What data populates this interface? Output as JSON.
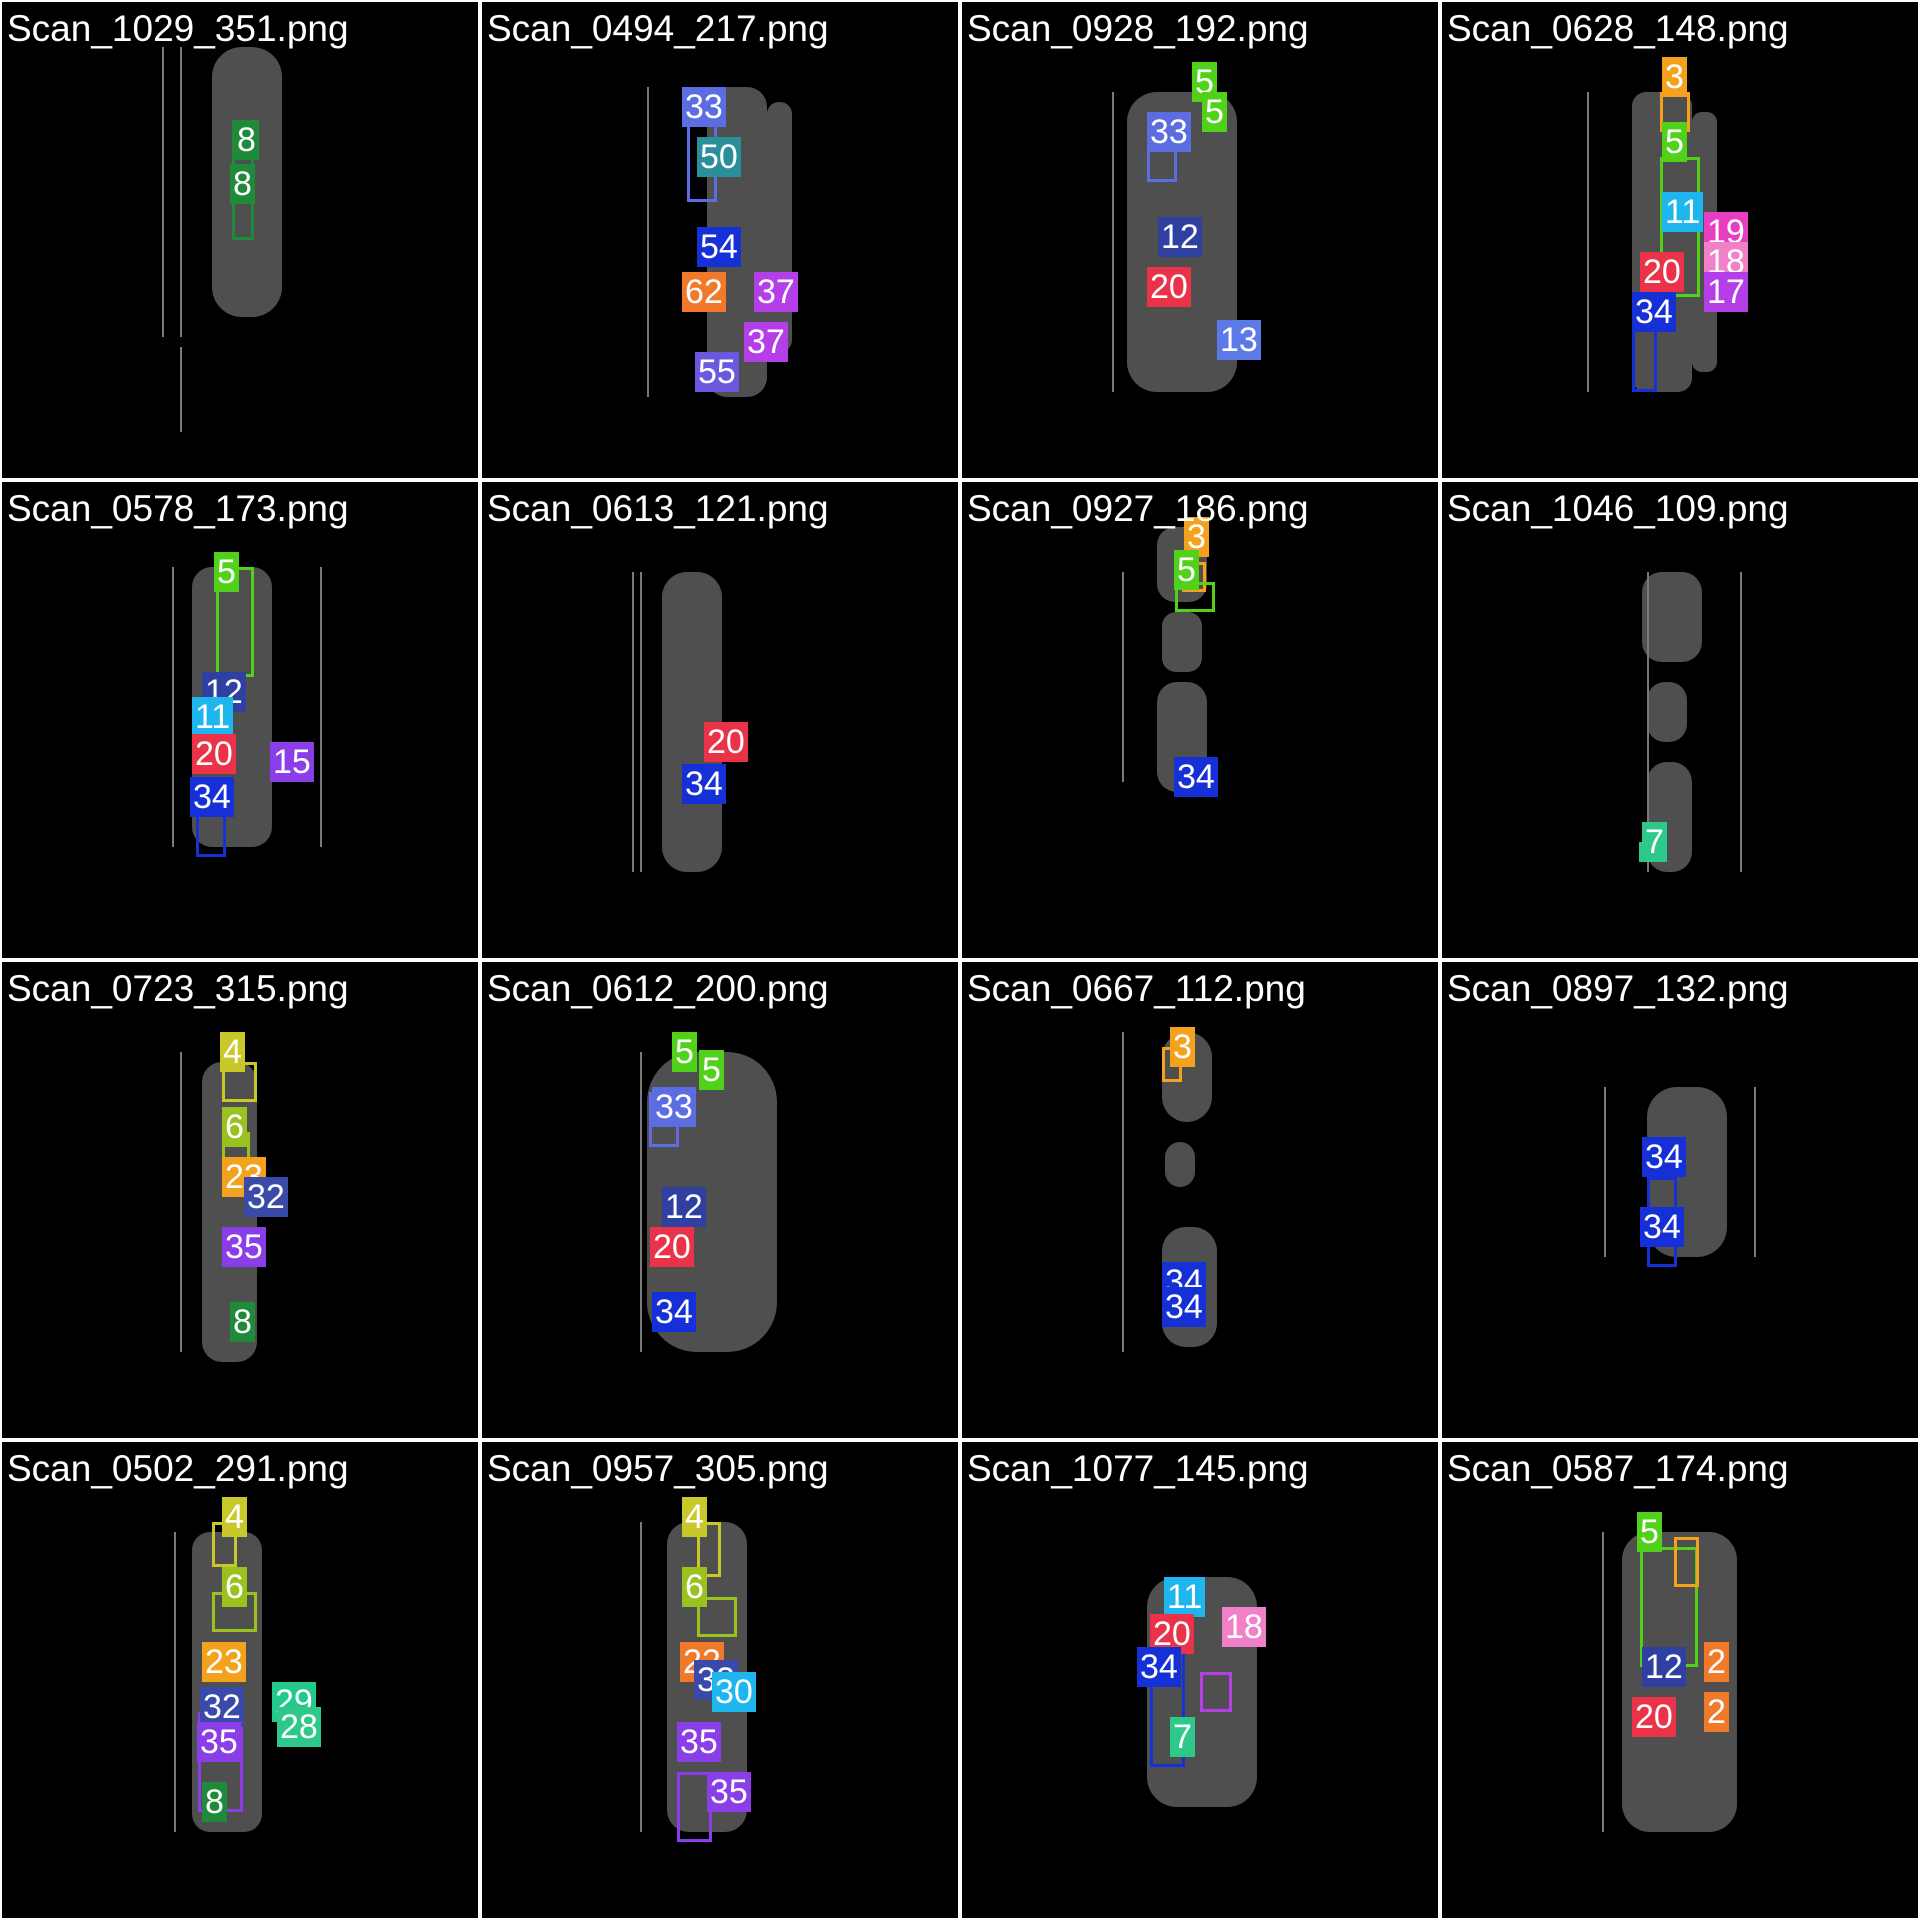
{
  "tiles": [
    {
      "title": "Scan_1029_351.png",
      "labels": [
        {
          "text": "8",
          "color": "#1f8a3a"
        },
        {
          "text": "8",
          "color": "#1f8a3a"
        }
      ]
    },
    {
      "title": "Scan_0494_217.png",
      "labels": [
        {
          "text": "33",
          "color": "#5b6de0"
        },
        {
          "text": "50",
          "color": "#2a8f9a"
        },
        {
          "text": "54",
          "color": "#1530d6"
        },
        {
          "text": "62",
          "color": "#f07a2a"
        },
        {
          "text": "37",
          "color": "#b43ee8"
        },
        {
          "text": "37",
          "color": "#b43ee8"
        },
        {
          "text": "55",
          "color": "#6a58e0"
        }
      ]
    },
    {
      "title": "Scan_0928_192.png",
      "labels": [
        {
          "text": "5",
          "color": "#52d11a"
        },
        {
          "text": "5",
          "color": "#52d11a"
        },
        {
          "text": "33",
          "color": "#5b6de0"
        },
        {
          "text": "12",
          "color": "#3040a0"
        },
        {
          "text": "20",
          "color": "#ea3348"
        },
        {
          "text": "13",
          "color": "#5b7ae8"
        }
      ]
    },
    {
      "title": "Scan_0628_148.png",
      "labels": [
        {
          "text": "3",
          "color": "#f4a21e"
        },
        {
          "text": "5",
          "color": "#52d11a"
        },
        {
          "text": "11",
          "color": "#1fb6f0"
        },
        {
          "text": "19",
          "color": "#e83ec2"
        },
        {
          "text": "18",
          "color": "#f080c8"
        },
        {
          "text": "20",
          "color": "#ea3348"
        },
        {
          "text": "17",
          "color": "#b43ee8"
        },
        {
          "text": "34",
          "color": "#1530d6"
        }
      ]
    },
    {
      "title": "Scan_0578_173.png",
      "labels": [
        {
          "text": "5",
          "color": "#52d11a"
        },
        {
          "text": "12",
          "color": "#3040a0"
        },
        {
          "text": "11",
          "color": "#1fb6f0"
        },
        {
          "text": "20",
          "color": "#ea3348"
        },
        {
          "text": "15",
          "color": "#8a3ee8"
        },
        {
          "text": "34",
          "color": "#1530d6"
        }
      ]
    },
    {
      "title": "Scan_0613_121.png",
      "labels": [
        {
          "text": "20",
          "color": "#ea3348"
        },
        {
          "text": "34",
          "color": "#1530d6"
        }
      ]
    },
    {
      "title": "Scan_0927_186.png",
      "labels": [
        {
          "text": "3",
          "color": "#f4a21e"
        },
        {
          "text": "5",
          "color": "#52d11a"
        },
        {
          "text": "34",
          "color": "#1530d6"
        }
      ]
    },
    {
      "title": "Scan_1046_109.png",
      "labels": [
        {
          "text": "7",
          "color": "#2ec98a"
        }
      ]
    },
    {
      "title": "Scan_0723_315.png",
      "labels": [
        {
          "text": "4",
          "color": "#c8c82a"
        },
        {
          "text": "6",
          "color": "#9ac21e"
        },
        {
          "text": "23",
          "color": "#f4a21e"
        },
        {
          "text": "32",
          "color": "#3a4aa8"
        },
        {
          "text": "35",
          "color": "#8a3ee8"
        },
        {
          "text": "8",
          "color": "#1f8a3a"
        }
      ]
    },
    {
      "title": "Scan_0612_200.png",
      "labels": [
        {
          "text": "5",
          "color": "#52d11a"
        },
        {
          "text": "5",
          "color": "#52d11a"
        },
        {
          "text": "33",
          "color": "#5b6de0"
        },
        {
          "text": "12",
          "color": "#3040a0"
        },
        {
          "text": "20",
          "color": "#ea3348"
        },
        {
          "text": "34",
          "color": "#1530d6"
        }
      ]
    },
    {
      "title": "Scan_0667_112.png",
      "labels": [
        {
          "text": "3",
          "color": "#f4a21e"
        },
        {
          "text": "34",
          "color": "#1530d6"
        },
        {
          "text": "34",
          "color": "#1530d6"
        }
      ]
    },
    {
      "title": "Scan_0897_132.png",
      "labels": [
        {
          "text": "34",
          "color": "#1530d6"
        },
        {
          "text": "34",
          "color": "#1530d6"
        }
      ]
    },
    {
      "title": "Scan_0502_291.png",
      "labels": [
        {
          "text": "4",
          "color": "#c8c82a"
        },
        {
          "text": "6",
          "color": "#9ac21e"
        },
        {
          "text": "23",
          "color": "#f4a21e"
        },
        {
          "text": "32",
          "color": "#3a4aa8"
        },
        {
          "text": "29",
          "color": "#22c88c"
        },
        {
          "text": "35",
          "color": "#8a3ee8"
        },
        {
          "text": "28",
          "color": "#2ec98a"
        },
        {
          "text": "8",
          "color": "#1f8a3a"
        }
      ]
    },
    {
      "title": "Scan_0957_305.png",
      "labels": [
        {
          "text": "4",
          "color": "#c8c82a"
        },
        {
          "text": "6",
          "color": "#9ac21e"
        },
        {
          "text": "22",
          "color": "#f07a2a"
        },
        {
          "text": "32",
          "color": "#3a4aa8"
        },
        {
          "text": "30",
          "color": "#1fb6f0"
        },
        {
          "text": "35",
          "color": "#8a3ee8"
        },
        {
          "text": "35",
          "color": "#8a3ee8"
        }
      ]
    },
    {
      "title": "Scan_1077_145.png",
      "labels": [
        {
          "text": "11",
          "color": "#1fb6f0"
        },
        {
          "text": "18",
          "color": "#f080c8"
        },
        {
          "text": "20",
          "color": "#ea3348"
        },
        {
          "text": "34",
          "color": "#1530d6"
        },
        {
          "text": "7",
          "color": "#2ec98a"
        }
      ]
    },
    {
      "title": "Scan_0587_174.png",
      "labels": [
        {
          "text": "5",
          "color": "#52d11a"
        },
        {
          "text": "12",
          "color": "#3040a0"
        },
        {
          "text": "2",
          "color": "#f07a2a"
        },
        {
          "text": "2",
          "color": "#f07a2a"
        },
        {
          "text": "20",
          "color": "#ea3348"
        }
      ]
    }
  ]
}
